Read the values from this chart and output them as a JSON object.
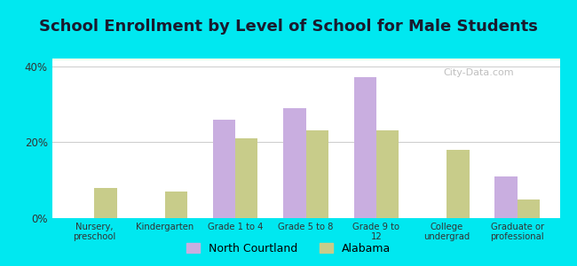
{
  "title": "School Enrollment by Level of School for Male Students",
  "categories": [
    "Nursery,\npreschool",
    "Kindergarten",
    "Grade 1 to 4",
    "Grade 5 to 8",
    "Grade 9 to\n12",
    "College\nundergrad",
    "Graduate or\nprofessional"
  ],
  "north_courtland": [
    0,
    0,
    26,
    29,
    37,
    0,
    11
  ],
  "alabama": [
    8,
    7,
    21,
    23,
    23,
    18,
    5
  ],
  "nc_color": "#c9aee0",
  "al_color": "#c8cc8a",
  "bg_outer": "#00e8f0",
  "ylim": [
    0,
    42
  ],
  "yticks": [
    0,
    20,
    40
  ],
  "ytick_labels": [
    "0%",
    "20%",
    "40%"
  ],
  "legend_nc": "North Courtland",
  "legend_al": "Alabama",
  "title_fontsize": 13,
  "bar_width": 0.32,
  "gridcolor": "#cccccc"
}
